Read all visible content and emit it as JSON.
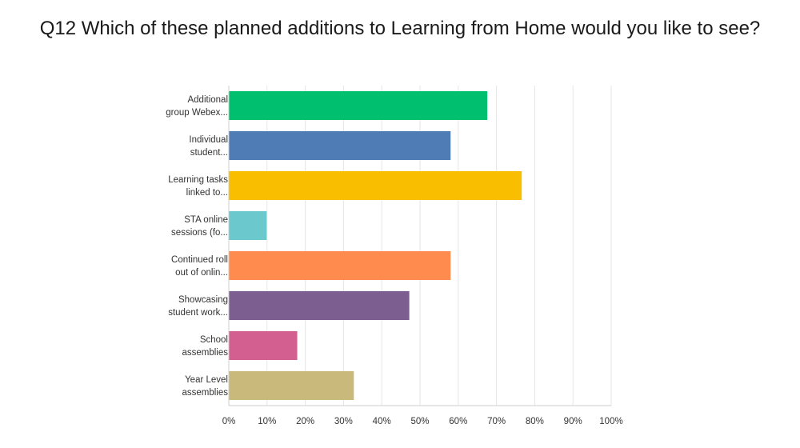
{
  "chart_data": {
    "type": "bar",
    "orientation": "horizontal",
    "title": "Q12 Which of these planned additions to Learning from Home would you like to see?",
    "categories": [
      [
        "Additional",
        "group Webex..."
      ],
      [
        "Individual",
        "student..."
      ],
      [
        "Learning tasks",
        "linked to..."
      ],
      [
        "STA online",
        "sessions (fo..."
      ],
      [
        "Continued roll",
        "out of onlin..."
      ],
      [
        "Showcasing",
        "student work..."
      ],
      [
        "School",
        "assemblies"
      ],
      [
        "Year Level",
        "assemblies"
      ]
    ],
    "values": [
      67.6,
      58.0,
      76.6,
      9.9,
      58.0,
      47.2,
      17.9,
      32.7
    ],
    "colors": [
      "#00bf6f",
      "#507cb6",
      "#f9be00",
      "#6bc8cd",
      "#ff8b4f",
      "#7d5e90",
      "#d25f90",
      "#c9b97b"
    ],
    "xlim": [
      0,
      100
    ],
    "ticks": [
      "0%",
      "10%",
      "20%",
      "30%",
      "40%",
      "50%",
      "60%",
      "70%",
      "80%",
      "90%",
      "100%"
    ],
    "grid": true,
    "grid_color": "#e6e6e6",
    "axis_color": "#cccccc"
  }
}
